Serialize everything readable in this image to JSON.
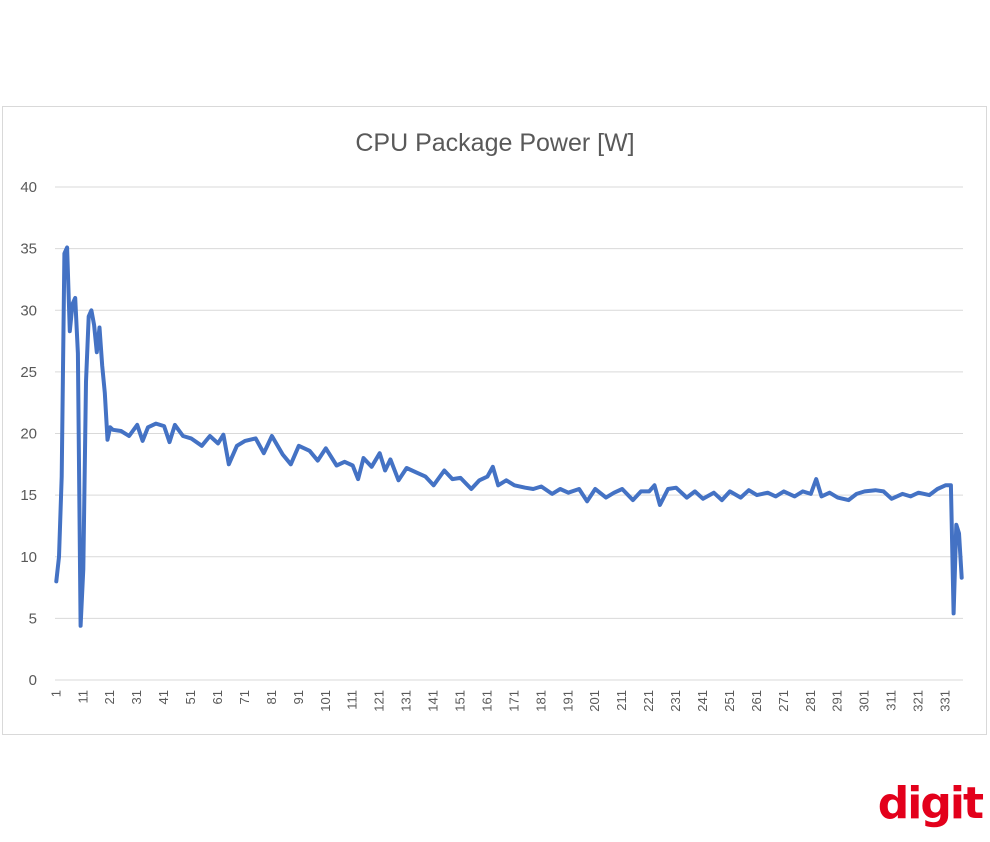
{
  "logo": {
    "text": "digit",
    "color": "#e3001b"
  },
  "chart_data": {
    "type": "line",
    "title": "CPU Package Power [W]",
    "xlabel": "",
    "ylabel": "",
    "ylim": [
      0,
      40
    ],
    "yticks": [
      0,
      5,
      10,
      15,
      20,
      25,
      30,
      35,
      40
    ],
    "xticks": [
      1,
      11,
      21,
      31,
      41,
      51,
      61,
      71,
      81,
      91,
      101,
      111,
      121,
      131,
      141,
      151,
      161,
      171,
      181,
      191,
      201,
      211,
      221,
      231,
      241,
      251,
      261,
      271,
      281,
      291,
      301,
      311,
      321,
      331
    ],
    "x_range": [
      1,
      337
    ],
    "grid": true,
    "legend": "none",
    "line_color": "#4472c4",
    "series": [
      {
        "x": [
          1,
          2,
          3,
          4,
          5,
          6,
          7,
          8,
          9,
          10,
          11,
          12,
          13,
          14,
          15,
          16,
          17,
          18,
          19,
          20,
          21,
          22,
          25,
          28,
          31,
          33,
          35,
          38,
          41,
          43,
          45,
          48,
          51,
          55,
          58,
          61,
          63,
          65,
          68,
          71,
          75,
          78,
          81,
          85,
          88,
          91,
          95,
          98,
          101,
          105,
          108,
          111,
          113,
          115,
          118,
          121,
          123,
          125,
          128,
          131,
          135,
          138,
          141,
          145,
          148,
          151,
          155,
          158,
          161,
          163,
          165,
          168,
          171,
          175,
          178,
          181,
          185,
          188,
          191,
          195,
          198,
          201,
          205,
          208,
          211,
          215,
          218,
          221,
          223,
          225,
          228,
          231,
          235,
          238,
          241,
          245,
          248,
          251,
          255,
          258,
          261,
          265,
          268,
          271,
          275,
          278,
          281,
          283,
          285,
          288,
          291,
          295,
          298,
          301,
          305,
          308,
          311,
          315,
          318,
          321,
          325,
          328,
          331,
          333,
          334,
          335,
          336,
          337
        ],
        "y": [
          8,
          10,
          16.5,
          34.6,
          35.1,
          28.3,
          30.5,
          31,
          26.5,
          4.4,
          9,
          24.2,
          29.5,
          30,
          28.8,
          26.6,
          28.6,
          25.5,
          23.3,
          19.5,
          20.5,
          20.3,
          20.2,
          19.8,
          20.7,
          19.4,
          20.5,
          20.8,
          20.6,
          19.3,
          20.7,
          19.8,
          19.6,
          19,
          19.8,
          19.2,
          19.9,
          17.5,
          19,
          19.4,
          19.6,
          18.4,
          19.8,
          18.3,
          17.5,
          19,
          18.6,
          17.8,
          18.8,
          17.4,
          17.7,
          17.4,
          16.3,
          18,
          17.3,
          18.4,
          17,
          17.9,
          16.2,
          17.2,
          16.8,
          16.5,
          15.8,
          17,
          16.3,
          16.4,
          15.5,
          16.2,
          16.5,
          17.3,
          15.8,
          16.2,
          15.8,
          15.6,
          15.5,
          15.7,
          15.1,
          15.5,
          15.2,
          15.5,
          14.5,
          15.5,
          14.8,
          15.2,
          15.5,
          14.6,
          15.3,
          15.3,
          15.8,
          14.2,
          15.5,
          15.6,
          14.8,
          15.3,
          14.7,
          15.2,
          14.6,
          15.3,
          14.8,
          15.4,
          15,
          15.2,
          14.9,
          15.3,
          14.9,
          15.3,
          15.1,
          16.3,
          14.9,
          15.2,
          14.8,
          14.6,
          15.1,
          15.3,
          15.4,
          15.3,
          14.7,
          15.1,
          14.9,
          15.2,
          15,
          15.5,
          15.8,
          15.8,
          5.4,
          12.6,
          11.9,
          8.3
        ]
      }
    ]
  }
}
